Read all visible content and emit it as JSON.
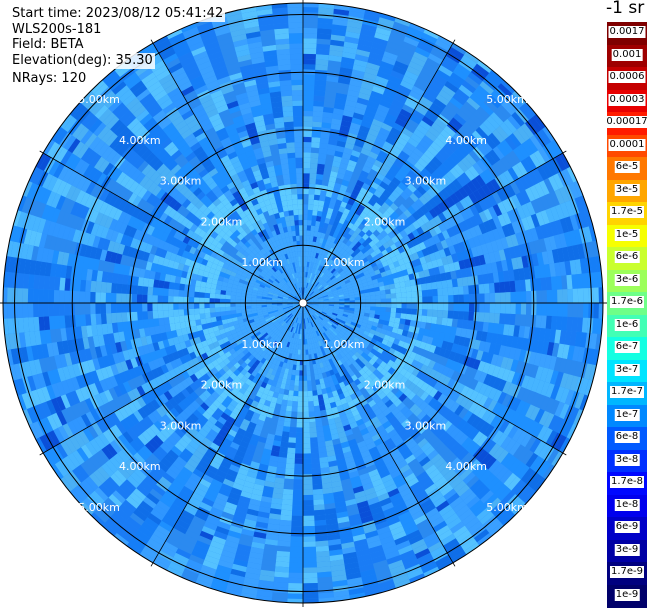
{
  "header": {
    "start_time": "Start time: 2023/08/12 05:41:42",
    "instrument": "WLS200s-181",
    "field": "Field: BETA",
    "elevation": "Elevation(deg): 35.30",
    "nrays": "NRays: 120"
  },
  "unit_label": "-1 sr",
  "chart_data": {
    "type": "ppi-polar-scan",
    "field": "BETA",
    "elevation_deg": 35.3,
    "n_rays": 120,
    "range_ring_labels_km": [
      "1.00km",
      "2.00km",
      "3.00km",
      "4.00km",
      "5.00km"
    ],
    "range_rings_km": [
      1,
      2,
      3,
      4,
      5
    ],
    "max_range_km": 5.2,
    "spoke_angles_deg": [
      0,
      30,
      60,
      90,
      120,
      150,
      180,
      210,
      240,
      270,
      300,
      330
    ],
    "dominant_value_range": [
      "1e-8",
      "6e-8"
    ],
    "colorbar": {
      "labels": [
        "0.0017",
        "0.001",
        "0.0006",
        "0.0003",
        "0.00017",
        "0.0001",
        "6e-5",
        "3e-5",
        "1.7e-5",
        "1e-5",
        "6e-6",
        "3e-6",
        "1.7e-6",
        "1e-6",
        "6e-7",
        "3e-7",
        "1.7e-7",
        "1e-7",
        "6e-8",
        "3e-8",
        "1.7e-8",
        "1e-8",
        "6e-9",
        "3e-9",
        "1.7e-9",
        "1e-9"
      ],
      "colors": [
        "#7f0000",
        "#9e0000",
        "#c40000",
        "#e80000",
        "#ff1c00",
        "#ff4a00",
        "#ff7800",
        "#ffa600",
        "#ffd400",
        "#f6ff01",
        "#c9ff2e",
        "#9cff5b",
        "#6eff88",
        "#42ffb5",
        "#14ffe2",
        "#00e4ff",
        "#00b6ff",
        "#0088ff",
        "#005aff",
        "#0030ff",
        "#0008ff",
        "#0000ed",
        "#0000c8",
        "#0000a4",
        "#00007f",
        "#00006a"
      ]
    }
  }
}
